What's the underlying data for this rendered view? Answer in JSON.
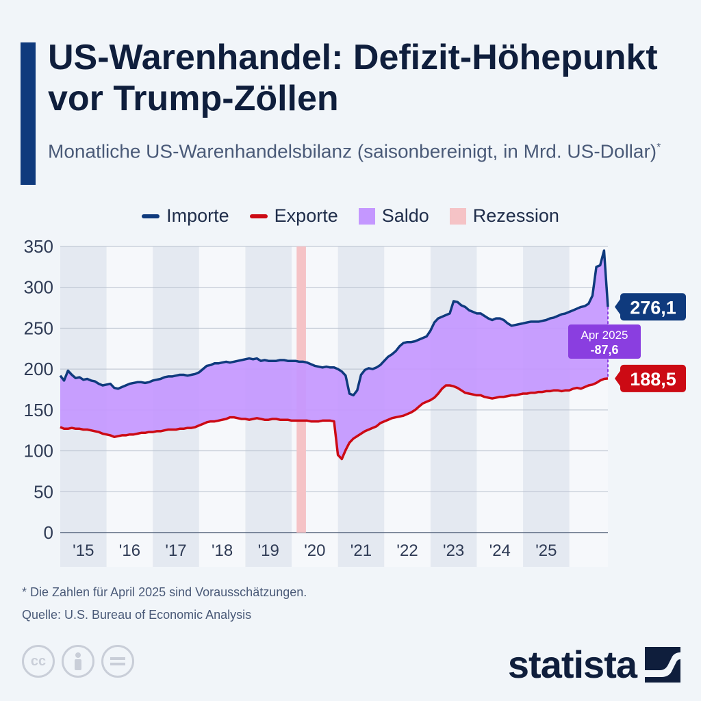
{
  "header": {
    "title": "US-Warenhandel: Defizit-Höhepunkt vor Trump-Zöllen",
    "subtitle": "Monatliche US-Warenhandelsbilanz (saisonbereinigt, in Mrd. US-Dollar)",
    "subtitle_mark": "*"
  },
  "legend": [
    {
      "label": "Importe",
      "color": "#0f3a7d",
      "kind": "line"
    },
    {
      "label": "Exporte",
      "color": "#cc0a14",
      "kind": "line"
    },
    {
      "label": "Saldo",
      "color": "#c497ff",
      "kind": "box"
    },
    {
      "label": "Rezession",
      "color": "#f5c3c6",
      "kind": "box"
    }
  ],
  "chart_data": {
    "type": "area",
    "yticks": [
      0,
      50,
      100,
      150,
      200,
      250,
      300,
      350
    ],
    "ylim": [
      0,
      350
    ],
    "year_labels": [
      "'15",
      "'16",
      "'17",
      "'18",
      "'19",
      "'20",
      "'21",
      "'22",
      "'23",
      "'24",
      "'25"
    ],
    "x_start": "2015-01",
    "x_end": "2025-04",
    "recession": {
      "start": "2020-03",
      "end": "2020-04"
    },
    "series": [
      {
        "name": "Importe",
        "color": "#0f3a7d",
        "values": [
          192,
          186,
          198,
          193,
          189,
          190,
          187,
          188,
          186,
          185,
          182,
          180,
          181,
          182,
          177,
          176,
          178,
          180,
          182,
          183,
          184,
          184,
          183,
          184,
          186,
          187,
          188,
          190,
          191,
          191,
          192,
          193,
          193,
          192,
          193,
          194,
          196,
          200,
          204,
          205,
          207,
          207,
          208,
          209,
          208,
          209,
          210,
          211,
          212,
          213,
          212,
          213,
          210,
          211,
          210,
          210,
          210,
          211,
          211,
          210,
          210,
          210,
          209,
          209,
          208,
          206,
          204,
          203,
          202,
          203,
          202,
          202,
          200,
          197,
          192,
          170,
          168,
          174,
          193,
          199,
          201,
          200,
          202,
          205,
          210,
          215,
          218,
          222,
          228,
          232,
          233,
          233,
          234,
          236,
          238,
          240,
          247,
          257,
          262,
          264,
          266,
          268,
          283,
          282,
          278,
          276,
          272,
          270,
          268,
          268,
          265,
          262,
          260,
          262,
          262,
          260,
          256,
          253,
          254,
          255,
          256,
          257,
          258,
          258,
          258,
          259,
          260,
          262,
          263,
          265,
          267,
          268,
          270,
          272,
          274,
          276,
          277,
          280,
          290,
          325,
          327,
          345,
          276.1
        ]
      },
      {
        "name": "Exporte",
        "color": "#cc0a14",
        "values": [
          129,
          127,
          127,
          128,
          127,
          127,
          126,
          126,
          125,
          124,
          123,
          121,
          120,
          119,
          117,
          118,
          119,
          119,
          120,
          120,
          121,
          122,
          122,
          123,
          123,
          124,
          124,
          125,
          126,
          126,
          126,
          127,
          127,
          128,
          128,
          129,
          131,
          133,
          135,
          136,
          136,
          137,
          138,
          139,
          141,
          141,
          140,
          139,
          139,
          138,
          139,
          140,
          139,
          138,
          138,
          139,
          139,
          138,
          138,
          138,
          137,
          137,
          137,
          137,
          137,
          136,
          136,
          136,
          137,
          137,
          137,
          136,
          95,
          90,
          101,
          110,
          115,
          118,
          121,
          124,
          126,
          128,
          130,
          134,
          136,
          138,
          140,
          141,
          142,
          143,
          145,
          147,
          150,
          154,
          158,
          160,
          162,
          165,
          170,
          176,
          180,
          180,
          179,
          177,
          174,
          171,
          170,
          169,
          168,
          168,
          166,
          165,
          164,
          165,
          166,
          166,
          167,
          168,
          168,
          169,
          170,
          170,
          171,
          171,
          172,
          172,
          173,
          173,
          174,
          174,
          173,
          174,
          174,
          176,
          177,
          176,
          178,
          180,
          181,
          183,
          186,
          188,
          188.5
        ]
      }
    ],
    "balance": {
      "label": "Apr 2025",
      "value": "-87,6"
    },
    "end_labels": {
      "imports": "276,1",
      "exports": "188,5"
    }
  },
  "footer": {
    "note": "* Die Zahlen für April 2025 sind Vorausschätzungen.",
    "source": "Quelle: U.S. Bureau of Economic Analysis",
    "brand": "statista",
    "license_icons": [
      "cc-icon",
      "by-icon",
      "nd-icon"
    ]
  }
}
